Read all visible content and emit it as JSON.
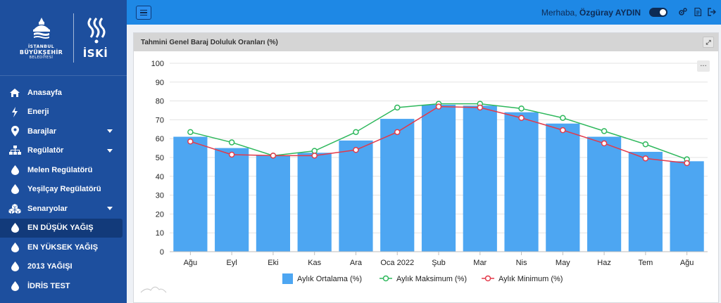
{
  "sidebar": {
    "logo_ibb": {
      "line1": "İSTANBUL",
      "line2": "BÜYÜKŞEHİR",
      "line3": "BELEDİYESİ"
    },
    "logo_iski": "İSKİ",
    "items": [
      {
        "label": "Anasayfa",
        "icon": "home-icon",
        "caret": false
      },
      {
        "label": "Enerji",
        "icon": "bolt-icon",
        "caret": false
      },
      {
        "label": "Barajlar",
        "icon": "map-marker-icon",
        "caret": true
      },
      {
        "label": "Regülatör",
        "icon": "sitemap-icon",
        "caret": true
      },
      {
        "label": "Melen Regülatörü",
        "icon": "drop-icon",
        "caret": false
      },
      {
        "label": "Yeşilçay Regülatörü",
        "icon": "drop-icon",
        "caret": false
      },
      {
        "label": "Senaryolar",
        "icon": "cubes-icon",
        "caret": true
      },
      {
        "label": "EN DÜŞÜK YAĞIŞ",
        "icon": "drop-icon",
        "caret": false,
        "active": true
      },
      {
        "label": "EN YÜKSEK YAĞIŞ",
        "icon": "drop-icon",
        "caret": false
      },
      {
        "label": "2013 YAĞIŞI",
        "icon": "drop-icon",
        "caret": false
      },
      {
        "label": "İDRİS TEST",
        "icon": "drop-icon",
        "caret": false
      }
    ]
  },
  "topbar": {
    "greeting_prefix": "Merhaba, ",
    "user_name": "Özgüray AYDIN"
  },
  "card": {
    "title": "Tahmini Genel Baraj Doluluk Oranları (%)",
    "menu_glyph": "···",
    "expand_glyph": "⤢"
  },
  "colors": {
    "bar": "#4da6f2",
    "max_line": "#2eb85c",
    "min_line": "#e33a4a"
  },
  "chart_data": {
    "type": "bar",
    "categories": [
      "Ağu",
      "Eyl",
      "Eki",
      "Kas",
      "Ara",
      "Oca 2022",
      "Şub",
      "Mar",
      "Nis",
      "May",
      "Haz",
      "Tem",
      "Ağu"
    ],
    "ylim": [
      0,
      100
    ],
    "yticks": [
      0,
      10,
      20,
      30,
      40,
      50,
      60,
      70,
      80,
      90,
      100
    ],
    "series": [
      {
        "name": "Aylık Ortalama (%)",
        "kind": "bar",
        "values": [
          61,
          55,
          51,
          52.5,
          59,
          70.5,
          78,
          77.5,
          74,
          68,
          61,
          53,
          48
        ]
      },
      {
        "name": "Aylık Maksimum (%)",
        "kind": "line",
        "values": [
          63.5,
          58,
          51,
          53.5,
          63.5,
          76.5,
          78.5,
          78.5,
          76,
          71,
          64,
          57,
          49
        ]
      },
      {
        "name": "Aylık Minimum (%)",
        "kind": "line",
        "values": [
          58.5,
          51.5,
          51,
          51,
          54,
          63.5,
          77,
          76.5,
          71,
          64.5,
          57.5,
          49.5,
          47
        ]
      }
    ],
    "legend_position": "bottom"
  }
}
